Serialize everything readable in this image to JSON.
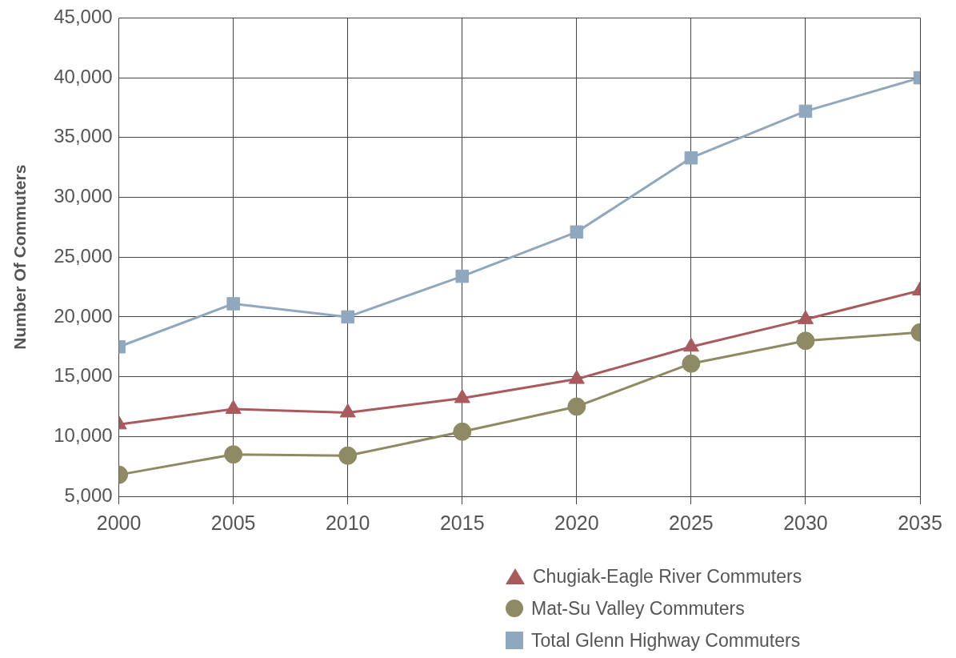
{
  "chart_data": {
    "type": "line",
    "ylabel": "Number Of Commuters",
    "x": [
      2000,
      2005,
      2010,
      2015,
      2020,
      2025,
      2030,
      2035
    ],
    "xlim": [
      2000,
      2035
    ],
    "xticks": [
      2000,
      2005,
      2010,
      2015,
      2020,
      2025,
      2030,
      2035
    ],
    "ylim": [
      5000,
      45000
    ],
    "yticks": [
      {
        "value": 5000,
        "label": "5,000"
      },
      {
        "value": 10000,
        "label": "10,000"
      },
      {
        "value": 15000,
        "label": "15,000"
      },
      {
        "value": 20000,
        "label": "20,000"
      },
      {
        "value": 25000,
        "label": "25,000"
      },
      {
        "value": 30000,
        "label": "30,000"
      },
      {
        "value": 35000,
        "label": "35,000"
      },
      {
        "value": 40000,
        "label": "40,000"
      },
      {
        "value": 45000,
        "label": "45,000"
      }
    ],
    "grid": true,
    "legend": "bottom right",
    "series": [
      {
        "name": "Chugiak-Eagle River Commuters",
        "color": "#a85a5c",
        "marker": "triangle",
        "values": [
          11000,
          12300,
          12000,
          13200,
          14800,
          17500,
          19800,
          22200
        ]
      },
      {
        "name": "Mat-Su Valley Commuters",
        "color": "#8e8a63",
        "marker": "circle",
        "values": [
          6800,
          8500,
          8400,
          10400,
          12500,
          16100,
          18000,
          18700
        ]
      },
      {
        "name": "Total Glenn Highway Commuters",
        "color": "#8fa8bd",
        "marker": "square",
        "values": [
          17500,
          21100,
          20000,
          23400,
          27100,
          33300,
          37200,
          40000
        ]
      }
    ]
  }
}
